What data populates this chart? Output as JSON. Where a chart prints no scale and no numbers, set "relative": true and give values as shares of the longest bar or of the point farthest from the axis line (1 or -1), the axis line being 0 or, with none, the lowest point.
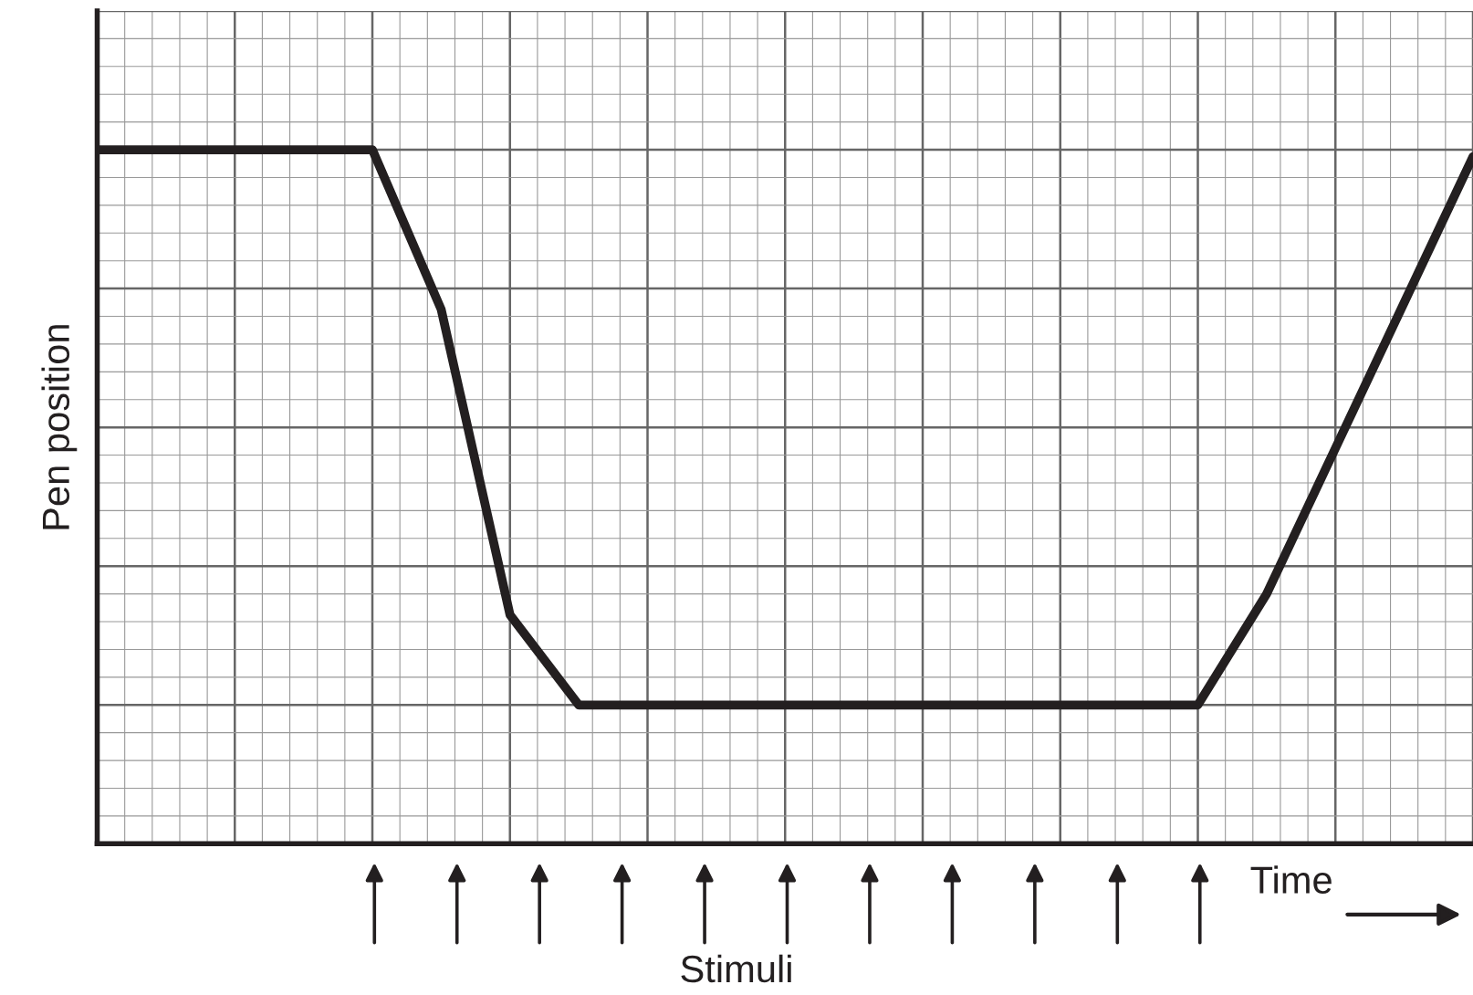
{
  "chart_data": {
    "type": "line",
    "relative": true,
    "xlabel": "Time",
    "ylabel": "Pen position",
    "grid": true,
    "marker": "none",
    "line_style": "solid",
    "annotations": [
      "Stimuli"
    ],
    "categories": [
      null,
      null,
      null,
      null,
      null,
      null,
      null,
      null,
      null,
      null,
      null,
      null,
      null,
      null,
      null,
      null,
      null,
      null,
      null,
      null,
      null
    ],
    "series": [
      {
        "color": "#231f20",
        "values": [
          1,
          1,
          1,
          1,
          1,
          0.77,
          0.33,
          0.2,
          0.2,
          0.2,
          0.2,
          0.2,
          0.2,
          0.2,
          0.2,
          0.2,
          0.2,
          0.36,
          0.57,
          0.78,
          0.99
        ]
      }
    ]
  }
}
